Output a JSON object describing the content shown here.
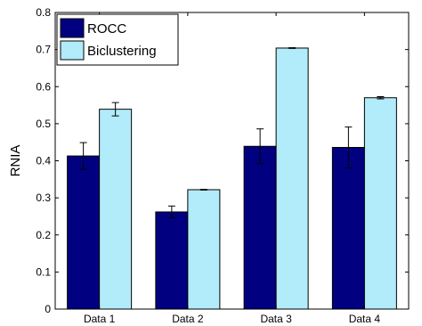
{
  "chart_data": {
    "type": "bar",
    "categories": [
      "Data 1",
      "Data 2",
      "Data 3",
      "Data 4"
    ],
    "series": [
      {
        "name": "ROCC",
        "color": "#000080",
        "values": [
          0.413,
          0.262,
          0.439,
          0.436
        ],
        "errors": [
          0.036,
          0.016,
          0.047,
          0.055
        ]
      },
      {
        "name": "Biclustering",
        "color": "#b2ebf9",
        "values": [
          0.539,
          0.322,
          0.704,
          0.57
        ],
        "errors": [
          0.018,
          0.001,
          0.001,
          0.003
        ]
      }
    ],
    "title": "",
    "xlabel": "",
    "ylabel": "RNIA",
    "ylim": [
      0,
      0.8
    ],
    "yticks": [
      "0",
      "0.1",
      "0.2",
      "0.3",
      "0.4",
      "0.5",
      "0.6",
      "0.7",
      "0.8"
    ],
    "grid": false,
    "legend_position": "top-left"
  }
}
